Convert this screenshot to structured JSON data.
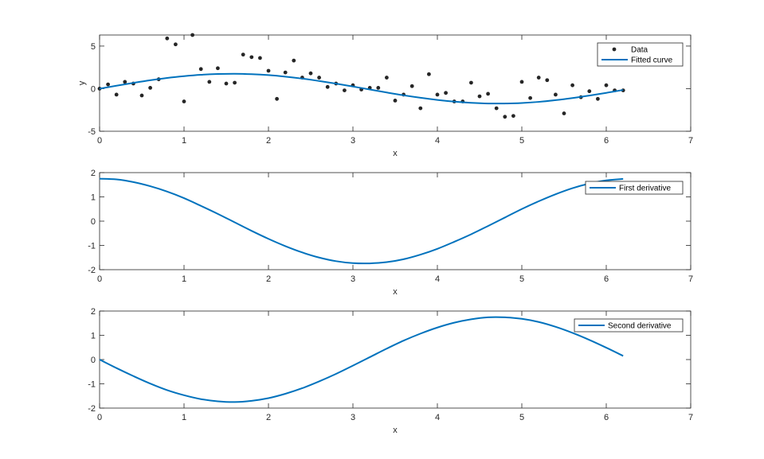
{
  "colors": {
    "line": "#0072bd",
    "marker": "#262626",
    "axis": "#262626"
  },
  "chart_data": [
    {
      "type": "scatter",
      "xlabel": "x",
      "ylabel": "y",
      "xlim": [
        0,
        7
      ],
      "ylim": [
        -5,
        6.3
      ],
      "xticks": [
        "0",
        "1",
        "2",
        "3",
        "4",
        "5",
        "6",
        "7"
      ],
      "yticks": [
        "-5",
        "0",
        "5"
      ],
      "ytick_values": [
        -5,
        0,
        5
      ],
      "legend_position": "top-right",
      "series": [
        {
          "name": "Data",
          "style": "points",
          "x": [
            0,
            0.1,
            0.2,
            0.3,
            0.4,
            0.5,
            0.6,
            0.7,
            0.8,
            0.9,
            1.0,
            1.1,
            1.2,
            1.3,
            1.4,
            1.5,
            1.6,
            1.7,
            1.8,
            1.9,
            2.0,
            2.1,
            2.2,
            2.3,
            2.4,
            2.5,
            2.6,
            2.7,
            2.8,
            2.9,
            3.0,
            3.1,
            3.2,
            3.3,
            3.4,
            3.5,
            3.6,
            3.7,
            3.8,
            3.9,
            4.0,
            4.1,
            4.2,
            4.3,
            4.4,
            4.5,
            4.6,
            4.7,
            4.8,
            4.9,
            5.0,
            5.1,
            5.2,
            5.3,
            5.4,
            5.5,
            5.6,
            5.7,
            5.8,
            5.9,
            6.0,
            6.1,
            6.2
          ],
          "y": [
            0,
            0.5,
            -0.7,
            0.8,
            0.6,
            -0.8,
            0.1,
            1.1,
            5.9,
            5.2,
            -1.5,
            6.3,
            2.3,
            0.8,
            2.4,
            0.6,
            0.7,
            4.0,
            3.7,
            3.6,
            2.1,
            -1.2,
            1.9,
            3.3,
            1.3,
            1.8,
            1.3,
            0.2,
            0.6,
            -0.2,
            0.4,
            -0.1,
            0.1,
            0.1,
            1.3,
            -1.4,
            -0.7,
            0.3,
            -2.3,
            1.7,
            -0.7,
            -0.5,
            -1.5,
            -1.5,
            0.7,
            -0.9,
            -0.6,
            -2.3,
            -3.3,
            -3.2,
            0.8,
            -1.1,
            1.3,
            1.0,
            -0.7,
            -2.9,
            0.4,
            -1.0,
            -0.3,
            -1.2,
            0.4,
            -0.2,
            -0.2
          ]
        },
        {
          "name": "Fitted curve",
          "style": "line",
          "amplitude": 1.75,
          "x": [
            0,
            0.2,
            0.4,
            0.6,
            0.8,
            1.0,
            1.2,
            1.4,
            1.6,
            1.8,
            2.0,
            2.2,
            2.4,
            2.6,
            2.8,
            3.0,
            3.2,
            3.4,
            3.6,
            3.8,
            4.0,
            4.2,
            4.4,
            4.6,
            4.8,
            5.0,
            5.2,
            5.4,
            5.6,
            5.8,
            6.0,
            6.2
          ],
          "y": [
            0,
            0.35,
            0.68,
            0.99,
            1.26,
            1.47,
            1.63,
            1.72,
            1.75,
            1.7,
            1.59,
            1.41,
            1.18,
            0.9,
            0.59,
            0.25,
            -0.1,
            -0.45,
            -0.78,
            -1.07,
            -1.32,
            -1.52,
            -1.66,
            -1.74,
            -1.74,
            -1.68,
            -1.55,
            -1.35,
            -1.1,
            -0.81,
            -0.49,
            -0.15
          ]
        }
      ]
    },
    {
      "type": "line",
      "xlabel": "x",
      "ylabel": "",
      "xlim": [
        0,
        7
      ],
      "ylim": [
        -2,
        2
      ],
      "xticks": [
        "0",
        "1",
        "2",
        "3",
        "4",
        "5",
        "6",
        "7"
      ],
      "yticks": [
        "-2",
        "-1",
        "0",
        "1",
        "2"
      ],
      "ytick_values": [
        -2,
        -1,
        0,
        1,
        2
      ],
      "legend_position": "top-right",
      "series": [
        {
          "name": "First derivative",
          "style": "line",
          "x": [
            0,
            0.2,
            0.4,
            0.6,
            0.8,
            1.0,
            1.2,
            1.4,
            1.6,
            1.8,
            2.0,
            2.2,
            2.4,
            2.6,
            2.8,
            3.0,
            3.2,
            3.4,
            3.6,
            3.8,
            4.0,
            4.2,
            4.4,
            4.6,
            4.8,
            5.0,
            5.2,
            5.4,
            5.6,
            5.8,
            6.0,
            6.2
          ],
          "y": [
            1.75,
            1.72,
            1.61,
            1.44,
            1.22,
            0.95,
            0.63,
            0.3,
            -0.05,
            -0.4,
            -0.73,
            -1.03,
            -1.29,
            -1.5,
            -1.65,
            -1.73,
            -1.74,
            -1.69,
            -1.57,
            -1.38,
            -1.14,
            -0.85,
            -0.54,
            -0.2,
            0.15,
            0.5,
            0.82,
            1.11,
            1.36,
            1.55,
            1.68,
            1.74
          ]
        }
      ]
    },
    {
      "type": "line",
      "xlabel": "x",
      "ylabel": "",
      "xlim": [
        0,
        7
      ],
      "ylim": [
        -2,
        2
      ],
      "xticks": [
        "0",
        "1",
        "2",
        "3",
        "4",
        "5",
        "6",
        "7"
      ],
      "yticks": [
        "-2",
        "-1",
        "0",
        "1",
        "2"
      ],
      "ytick_values": [
        -2,
        -1,
        0,
        1,
        2
      ],
      "legend_position": "top-right",
      "series": [
        {
          "name": "Second derivative",
          "style": "line",
          "x": [
            0,
            0.2,
            0.4,
            0.6,
            0.8,
            1.0,
            1.2,
            1.4,
            1.6,
            1.8,
            2.0,
            2.2,
            2.4,
            2.6,
            2.8,
            3.0,
            3.2,
            3.4,
            3.6,
            3.8,
            4.0,
            4.2,
            4.4,
            4.6,
            4.8,
            5.0,
            5.2,
            5.4,
            5.6,
            5.8,
            6.0,
            6.2
          ],
          "y": [
            0,
            -0.35,
            -0.68,
            -0.99,
            -1.26,
            -1.47,
            -1.63,
            -1.72,
            -1.75,
            -1.7,
            -1.59,
            -1.41,
            -1.18,
            -0.9,
            -0.59,
            -0.25,
            0.1,
            0.45,
            0.78,
            1.07,
            1.32,
            1.52,
            1.66,
            1.74,
            1.74,
            1.68,
            1.55,
            1.35,
            1.1,
            0.81,
            0.49,
            0.15
          ]
        }
      ]
    }
  ]
}
